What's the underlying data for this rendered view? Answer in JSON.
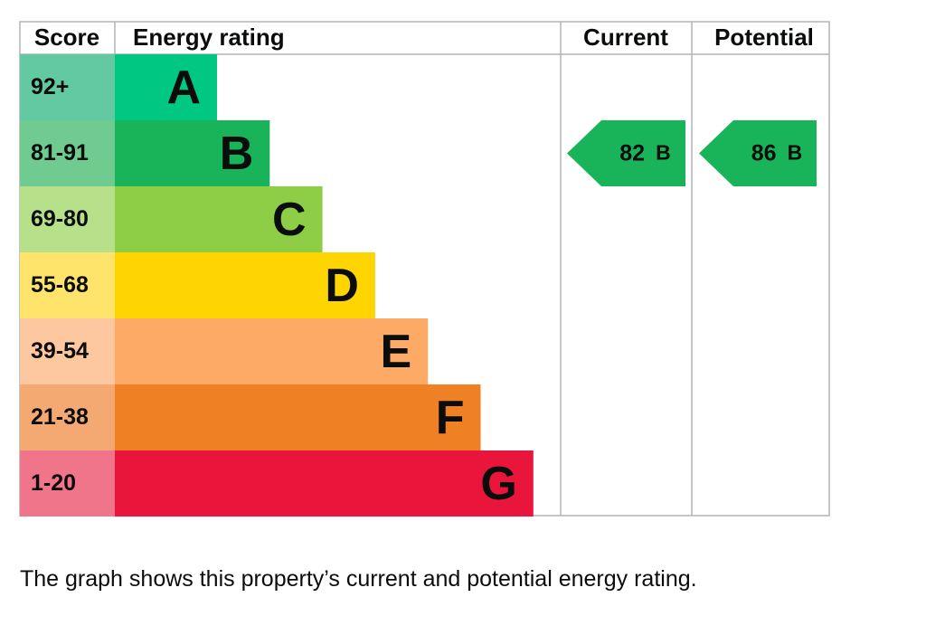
{
  "headers": {
    "score": "Score",
    "rating": "Energy rating",
    "current": "Current",
    "potential": "Potential"
  },
  "bands": [
    {
      "score": "92+",
      "letter": "A",
      "color": "#00c781",
      "tint": "#63c9a3"
    },
    {
      "score": "81-91",
      "letter": "B",
      "color": "#19b459",
      "tint": "#6fcb8f"
    },
    {
      "score": "69-80",
      "letter": "C",
      "color": "#8dce46",
      "tint": "#b6e08a"
    },
    {
      "score": "55-68",
      "letter": "D",
      "color": "#ffd500",
      "tint": "#ffe46b"
    },
    {
      "score": "39-54",
      "letter": "E",
      "color": "#fcaa65",
      "tint": "#fdc8a0"
    },
    {
      "score": "21-38",
      "letter": "F",
      "color": "#ef8023",
      "tint": "#f4a972"
    },
    {
      "score": "1-20",
      "letter": "G",
      "color": "#e9153b",
      "tint": "#f0748a"
    }
  ],
  "current": {
    "value": 82,
    "band": "B"
  },
  "potential": {
    "value": 86,
    "band": "B"
  },
  "caption": "The graph shows this property’s current and potential energy rating."
}
